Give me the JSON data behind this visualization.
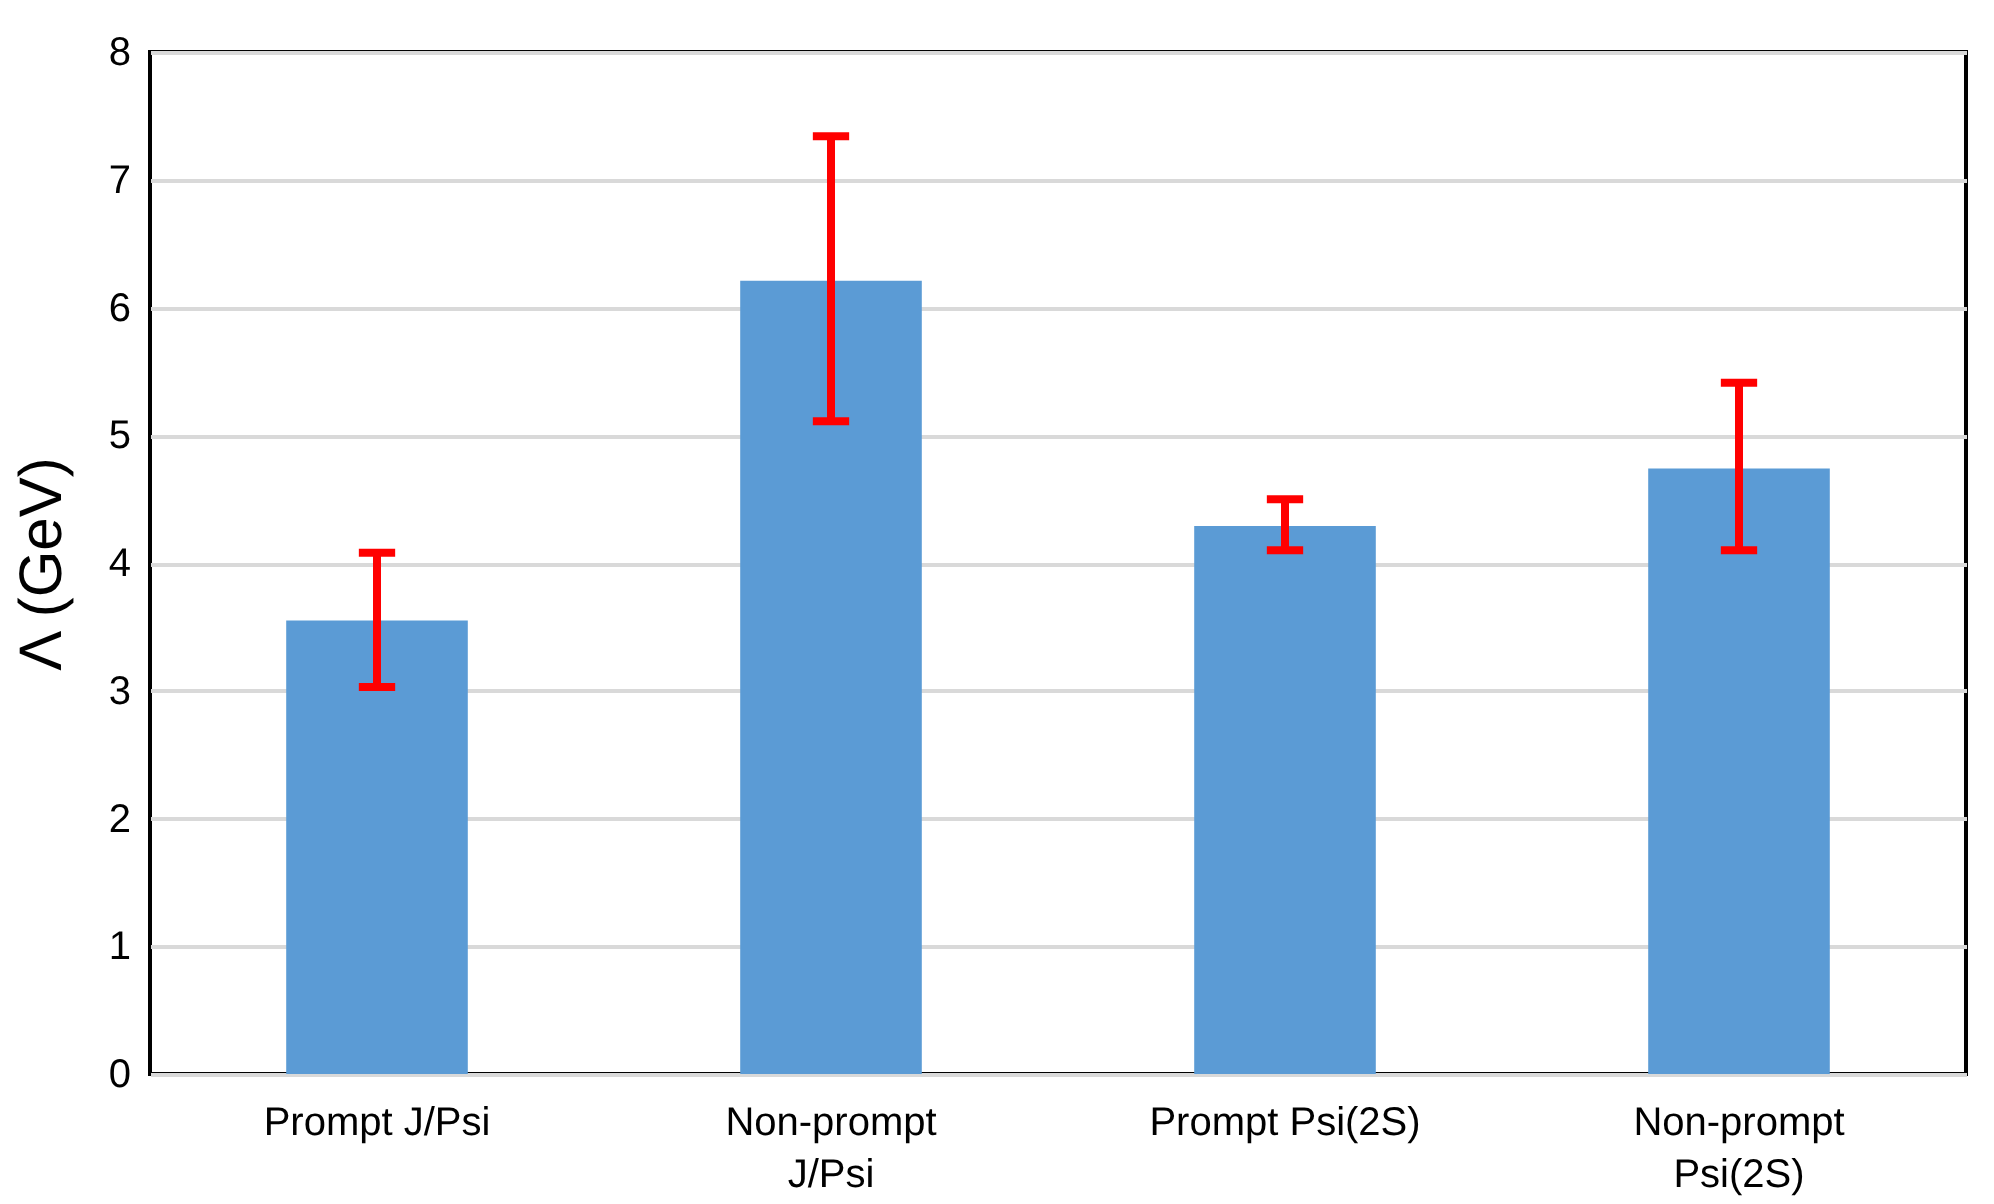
{
  "chart_data": {
    "type": "bar",
    "ylabel": "Λ (GeV)",
    "categories": [
      "Prompt J/Psi",
      "Non-prompt J/Psi",
      "Prompt Psi(2S)",
      "Non-prompt Psi(2S)"
    ],
    "series": [
      {
        "color": "#5b9bd5",
        "values": [
          3.55,
          6.21,
          4.29,
          4.74
        ],
        "errors": [
          [
            3.03,
            4.08
          ],
          [
            5.11,
            7.34
          ],
          [
            4.1,
            4.5
          ],
          [
            4.1,
            5.41
          ]
        ]
      }
    ],
    "ylim": [
      0,
      8
    ],
    "yticks": [
      0,
      1,
      2,
      3,
      4,
      5,
      6,
      7,
      8
    ],
    "grid": "y",
    "legend": false
  }
}
